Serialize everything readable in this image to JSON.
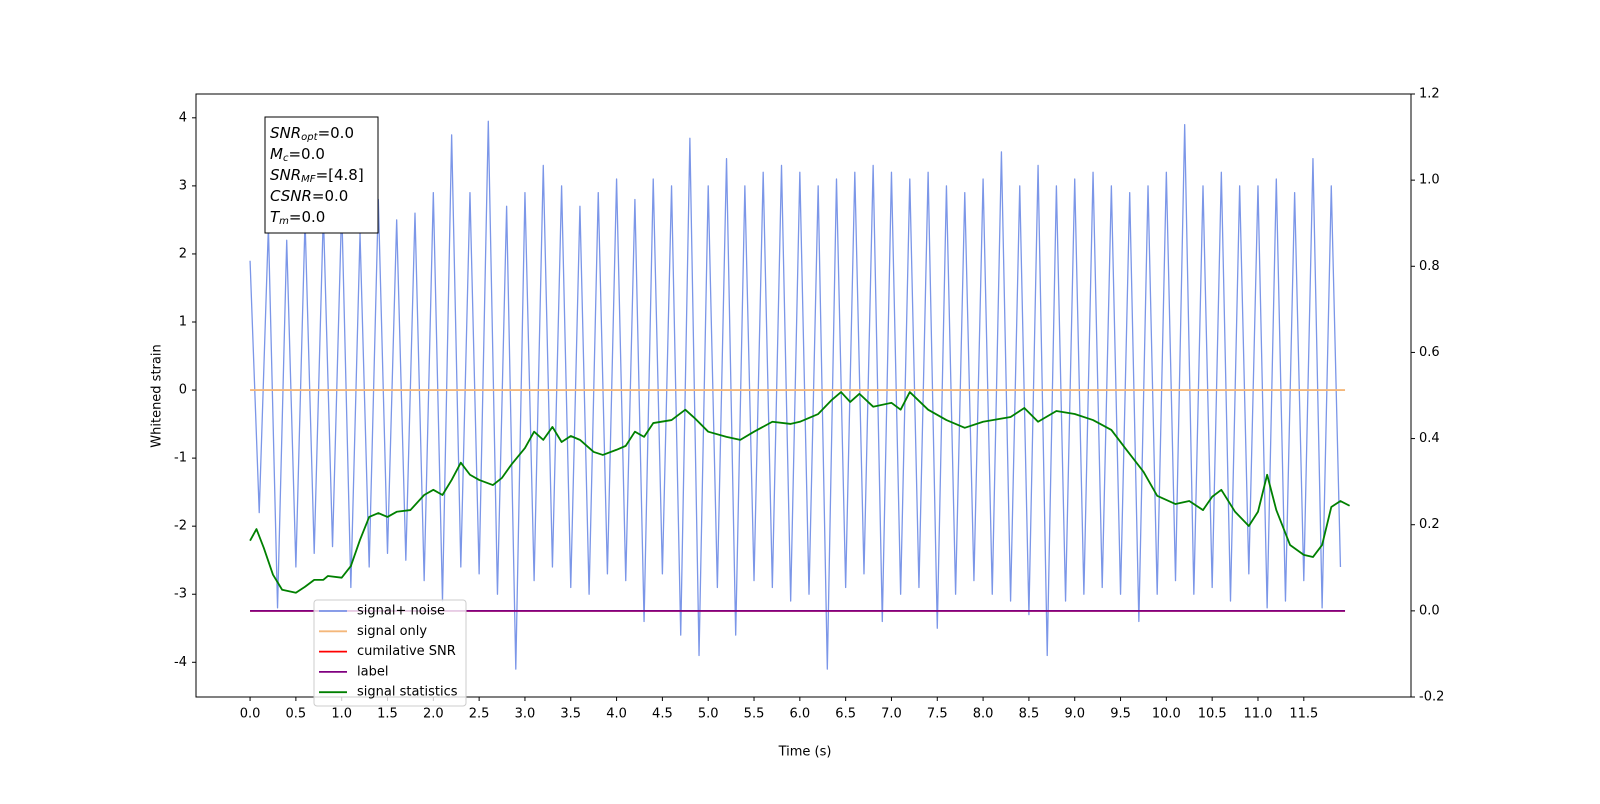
{
  "chart_data": {
    "type": "line",
    "xlabel": "Time (s)",
    "ylabel": "Whitened strain",
    "xlim": [
      -0.59,
      12.67
    ],
    "ylim": [
      -4.51,
      4.35
    ],
    "y2lim": [
      -0.2,
      1.2
    ],
    "xticks": [
      {
        "value": 0,
        "label": "0.0"
      },
      0.5,
      {
        "value": 1,
        "label": "1.0"
      },
      1.5,
      {
        "value": 2,
        "label": "2.0"
      },
      2.5,
      {
        "value": 3,
        "label": "3.0"
      },
      3.5,
      {
        "value": 4,
        "label": "4.0"
      },
      4.5,
      {
        "value": 5,
        "label": "5.0"
      },
      5.5,
      {
        "value": 6,
        "label": "6.0"
      },
      6.5,
      {
        "value": 7,
        "label": "7.0"
      },
      7.5,
      {
        "value": 8,
        "label": "8.0"
      },
      8.5,
      {
        "value": 9,
        "label": "9.0"
      },
      9.5,
      {
        "value": 10,
        "label": "10.0"
      },
      10.5,
      {
        "value": 11,
        "label": "11.0"
      },
      11.5
    ],
    "yticks": [
      -4,
      -3,
      -2,
      -1,
      0,
      1,
      2,
      3,
      4
    ],
    "y2ticks": [
      -0.2,
      {
        "value": 0,
        "label": "0.0"
      },
      0.2,
      0.4,
      0.6,
      0.8,
      {
        "value": 1,
        "label": "1.0"
      },
      1.2
    ],
    "annotation": [
      {
        "name": "SNR",
        "sub": "opt",
        "value": "=0.0"
      },
      {
        "name": "M",
        "sub": "c",
        "value": "=0.0"
      },
      {
        "name": "SNR",
        "sub": "MF",
        "value": "=[4.8]"
      },
      {
        "name": "CSNR",
        "sub": "",
        "value": "=0.0"
      },
      {
        "name": "T",
        "sub": "m",
        "value": "=0.0"
      }
    ],
    "series": [
      {
        "name": "signal+ noise",
        "color": "#7b96e8",
        "x": [
          0.0,
          0.1,
          0.2,
          0.3,
          0.4,
          0.5,
          0.6,
          0.7,
          0.8,
          0.9,
          1.0,
          1.1,
          1.2,
          1.3,
          1.4,
          1.5,
          1.6,
          1.7,
          1.8,
          1.9,
          2.0,
          2.1,
          2.2,
          2.3,
          2.4,
          2.5,
          2.6,
          2.7,
          2.8,
          2.9,
          3.0,
          3.1,
          3.2,
          3.3,
          3.4,
          3.5,
          3.6,
          3.7,
          3.8,
          3.9,
          4.0,
          4.1,
          4.2,
          4.3,
          4.4,
          4.5,
          4.6,
          4.7,
          4.8,
          4.9,
          5.0,
          5.1,
          5.2,
          5.3,
          5.4,
          5.5,
          5.6,
          5.7,
          5.8,
          5.9,
          6.0,
          6.1,
          6.2,
          6.3,
          6.4,
          6.5,
          6.6,
          6.7,
          6.8,
          6.9,
          7.0,
          7.1,
          7.2,
          7.3,
          7.4,
          7.5,
          7.6,
          7.7,
          7.8,
          7.9,
          8.0,
          8.1,
          8.2,
          8.3,
          8.4,
          8.5,
          8.6,
          8.7,
          8.8,
          8.9,
          9.0,
          9.1,
          9.2,
          9.3,
          9.4,
          9.5,
          9.6,
          9.7,
          9.8,
          9.9,
          10.0,
          10.1,
          10.2,
          10.3,
          10.4,
          10.5,
          10.6,
          10.7,
          10.8,
          10.9,
          11.0,
          11.1,
          11.2,
          11.3,
          11.4,
          11.5,
          11.6,
          11.7,
          11.8,
          11.9
        ],
        "values": [
          1.9,
          -1.8,
          2.4,
          -3.2,
          2.2,
          -2.6,
          2.5,
          -2.4,
          2.6,
          -2.3,
          2.7,
          -2.9,
          2.3,
          -2.6,
          2.8,
          -2.4,
          2.5,
          -2.5,
          2.6,
          -2.8,
          2.9,
          -3.1,
          3.75,
          -2.6,
          2.9,
          -2.7,
          3.95,
          -3.0,
          2.7,
          -4.1,
          2.9,
          -2.8,
          3.3,
          -2.6,
          3.0,
          -2.9,
          2.7,
          -3.0,
          2.9,
          -2.7,
          3.1,
          -2.8,
          2.8,
          -3.4,
          3.1,
          -2.7,
          3.0,
          -3.6,
          3.7,
          -3.9,
          3.0,
          -2.9,
          3.4,
          -3.6,
          3.0,
          -2.8,
          3.2,
          -2.9,
          3.3,
          -3.1,
          3.2,
          -3.0,
          3.0,
          -4.1,
          3.1,
          -2.9,
          3.2,
          -2.7,
          3.3,
          -3.4,
          3.2,
          -3.0,
          3.1,
          -2.9,
          3.2,
          -3.5,
          3.0,
          -3.0,
          2.9,
          -2.8,
          3.1,
          -3.0,
          3.5,
          -3.1,
          3.0,
          -3.3,
          3.3,
          -3.9,
          3.0,
          -3.1,
          3.1,
          -3.0,
          3.2,
          -2.9,
          3.0,
          -3.0,
          2.9,
          -3.4,
          3.0,
          -3.0,
          3.2,
          -2.8,
          3.9,
          -3.0,
          3.0,
          -2.9,
          3.2,
          -3.1,
          3.0,
          -2.7,
          3.0,
          -3.2,
          3.1,
          -3.1,
          2.9,
          -2.8,
          3.4,
          -3.2,
          3.0,
          -2.6
        ]
      },
      {
        "name": "signal only",
        "color": "#f4b77a",
        "x": [
          0,
          11.95
        ],
        "values": [
          0,
          0
        ]
      },
      {
        "name": "cumilative SNR",
        "color": "#ff0000",
        "axis": "y2",
        "x": [
          0,
          11.95
        ],
        "values": [
          0,
          0
        ]
      },
      {
        "name": "label",
        "color": "#800080",
        "axis": "y2",
        "x": [
          0,
          11.95
        ],
        "values": [
          0,
          0
        ]
      },
      {
        "name": "signal statistics",
        "color": "#008000",
        "axis": "y2",
        "x": [
          0.0,
          0.07,
          0.15,
          0.25,
          0.35,
          0.5,
          0.6,
          0.7,
          0.8,
          0.85,
          1.0,
          1.1,
          1.2,
          1.3,
          1.4,
          1.5,
          1.6,
          1.75,
          1.9,
          2.0,
          2.1,
          2.2,
          2.3,
          2.4,
          2.5,
          2.65,
          2.75,
          2.85,
          3.0,
          3.1,
          3.2,
          3.3,
          3.4,
          3.5,
          3.6,
          3.75,
          3.85,
          4.0,
          4.1,
          4.2,
          4.3,
          4.4,
          4.6,
          4.75,
          4.85,
          5.0,
          5.2,
          5.35,
          5.5,
          5.7,
          5.9,
          6.0,
          6.2,
          6.35,
          6.45,
          6.55,
          6.65,
          6.8,
          7.0,
          7.1,
          7.2,
          7.4,
          7.6,
          7.8,
          8.0,
          8.3,
          8.45,
          8.6,
          8.8,
          9.0,
          9.2,
          9.4,
          9.55,
          9.75,
          9.9,
          10.1,
          10.25,
          10.4,
          10.5,
          10.6,
          10.75,
          10.9,
          11.0,
          11.1,
          11.2,
          11.35,
          11.5,
          11.6,
          11.7,
          11.8,
          11.9,
          12.0
        ],
        "values": [
          0.163,
          0.19,
          0.146,
          0.084,
          0.049,
          0.042,
          0.056,
          0.072,
          0.072,
          0.081,
          0.077,
          0.104,
          0.165,
          0.218,
          0.227,
          0.218,
          0.23,
          0.234,
          0.269,
          0.281,
          0.269,
          0.304,
          0.344,
          0.316,
          0.304,
          0.292,
          0.309,
          0.339,
          0.378,
          0.416,
          0.397,
          0.427,
          0.392,
          0.406,
          0.397,
          0.369,
          0.362,
          0.374,
          0.383,
          0.416,
          0.404,
          0.436,
          0.443,
          0.467,
          0.448,
          0.416,
          0.404,
          0.397,
          0.416,
          0.439,
          0.434,
          0.439,
          0.457,
          0.49,
          0.508,
          0.485,
          0.504,
          0.474,
          0.483,
          0.467,
          0.508,
          0.467,
          0.443,
          0.425,
          0.439,
          0.45,
          0.471,
          0.439,
          0.464,
          0.457,
          0.443,
          0.42,
          0.378,
          0.323,
          0.267,
          0.248,
          0.255,
          0.234,
          0.265,
          0.281,
          0.23,
          0.197,
          0.23,
          0.316,
          0.234,
          0.153,
          0.13,
          0.125,
          0.153,
          0.241,
          0.255,
          0.244
        ]
      }
    ]
  }
}
